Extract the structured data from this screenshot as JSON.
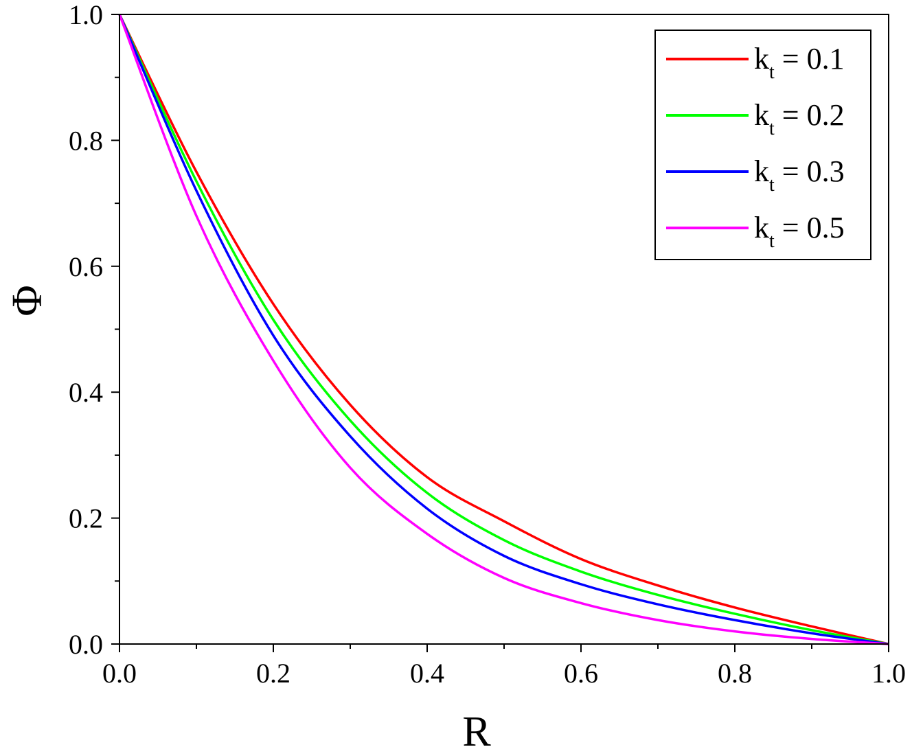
{
  "chart_data": {
    "type": "line",
    "xlabel": "R",
    "ylabel": "Φ",
    "xlim": [
      0.0,
      1.0
    ],
    "ylim": [
      0.0,
      1.0
    ],
    "xticks": [
      "0.0",
      "0.2",
      "0.4",
      "0.6",
      "0.8",
      "1.0"
    ],
    "yticks": [
      "0.0",
      "0.2",
      "0.4",
      "0.6",
      "0.8",
      "1.0"
    ],
    "grid": false,
    "legend_position": "top-right",
    "x": [
      0.0,
      0.1,
      0.2,
      0.3,
      0.4,
      0.5,
      0.6,
      0.7,
      0.8,
      0.9,
      1.0
    ],
    "series": [
      {
        "name": "kt = 0.1",
        "label_main": "k",
        "label_sub": "t",
        "label_value": " = 0.1",
        "color": "#ff0000",
        "values": [
          1.0,
          0.75,
          0.54,
          0.38,
          0.265,
          0.195,
          0.135,
          0.093,
          0.058,
          0.028,
          0.0
        ]
      },
      {
        "name": "kt = 0.2",
        "label_main": "k",
        "label_sub": "t",
        "label_value": " = 0.2",
        "color": "#00ff00",
        "values": [
          1.0,
          0.735,
          0.515,
          0.355,
          0.24,
          0.165,
          0.115,
          0.078,
          0.048,
          0.022,
          0.0
        ]
      },
      {
        "name": "kt = 0.3",
        "label_main": "k",
        "label_sub": "t",
        "label_value": " = 0.3",
        "color": "#0000ff",
        "values": [
          1.0,
          0.72,
          0.49,
          0.33,
          0.215,
          0.14,
          0.095,
          0.063,
          0.038,
          0.017,
          0.0
        ]
      },
      {
        "name": "kt = 0.5",
        "label_main": "k",
        "label_sub": "t",
        "label_value": " = 0.5",
        "color": "#ff00ff",
        "values": [
          1.0,
          0.68,
          0.45,
          0.28,
          0.175,
          0.105,
          0.065,
          0.038,
          0.02,
          0.008,
          0.0
        ]
      }
    ]
  }
}
